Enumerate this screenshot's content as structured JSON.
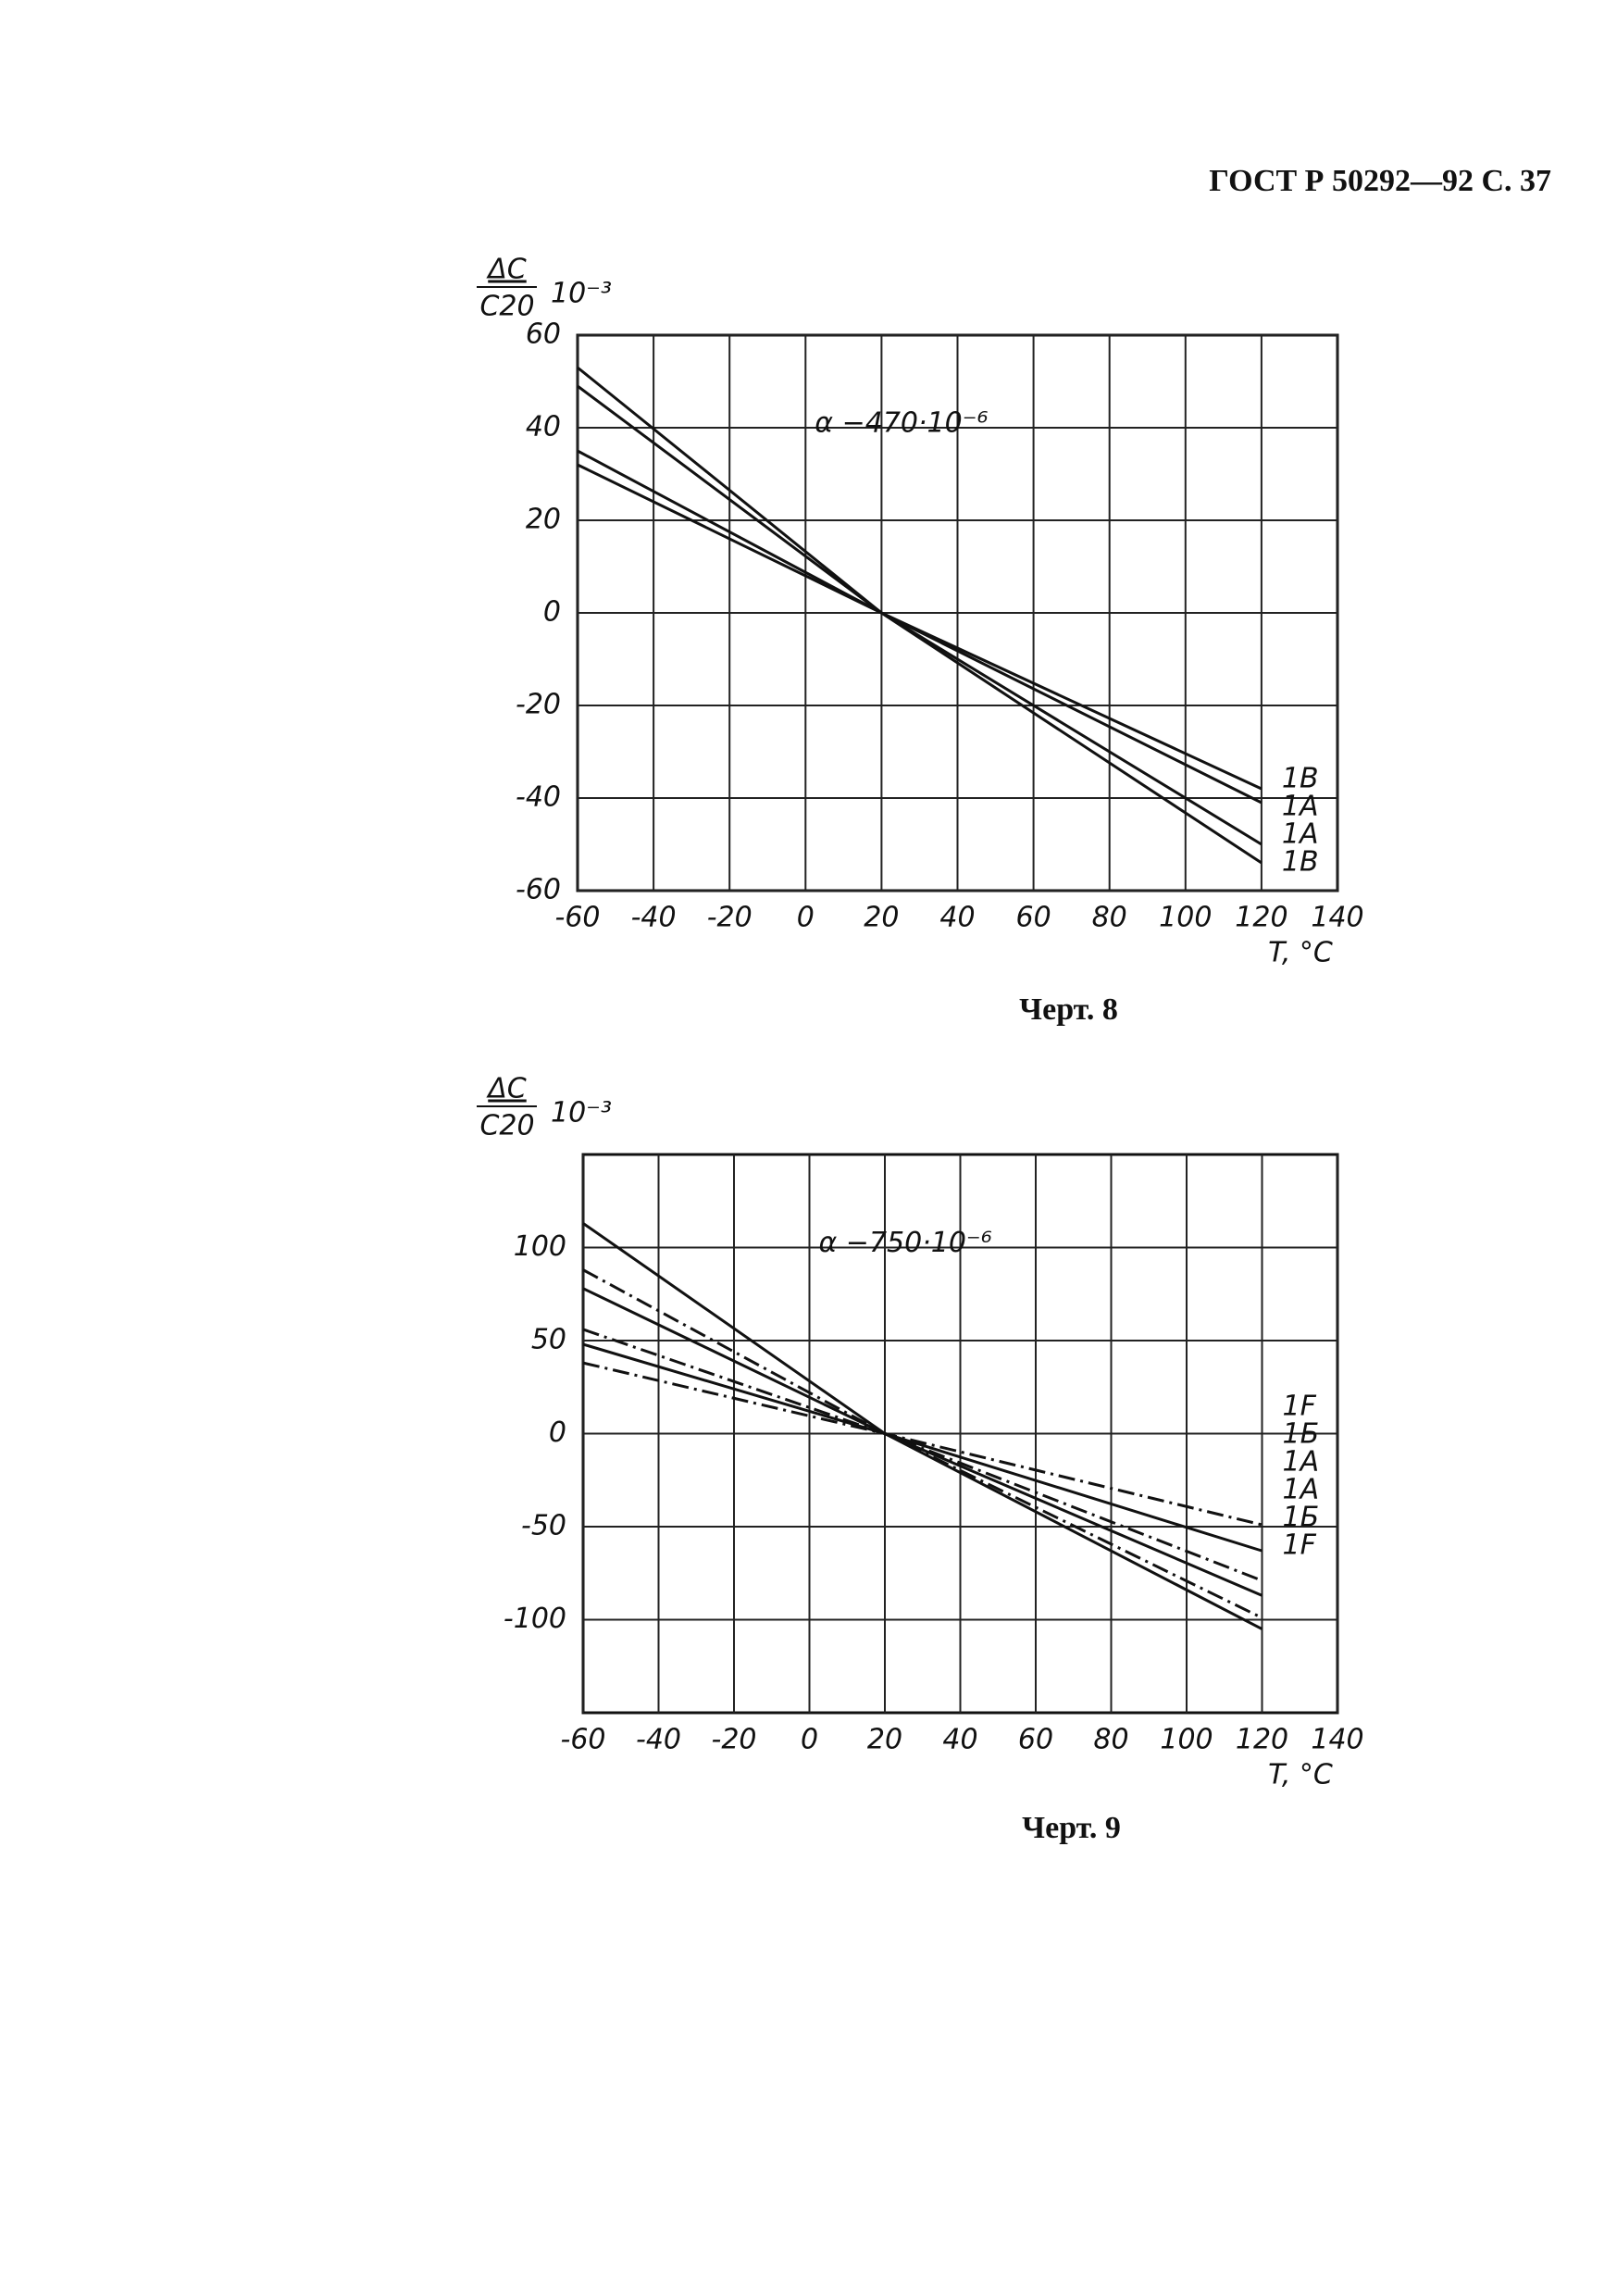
{
  "header": "ГОСТ Р 50292—92 С. 37",
  "chart_data": [
    {
      "type": "line",
      "caption": "Черт. 8",
      "y_label_top": "ΔC",
      "y_label_bottom": "C20",
      "y_unit": "10⁻³",
      "x_label": "T, °C",
      "annotation": "α −470·10⁻⁶",
      "x": [
        -60,
        20,
        120
      ],
      "xlim": [
        -60,
        140
      ],
      "xticks": [
        -60,
        -40,
        -20,
        0,
        20,
        40,
        60,
        80,
        100,
        120,
        140
      ],
      "ylim": [
        -60,
        60
      ],
      "yticks": [
        60,
        40,
        20,
        0,
        -20,
        -40,
        -60
      ],
      "grid": true,
      "series": [
        {
          "name": "1B",
          "color": "#111111",
          "dash": "solid",
          "values": [
            35,
            0,
            -38
          ]
        },
        {
          "name": "1A",
          "color": "#111111",
          "dash": "solid",
          "values": [
            32,
            0,
            -41
          ]
        },
        {
          "name": "1A",
          "color": "#111111",
          "dash": "solid",
          "values": [
            49,
            0,
            -50
          ]
        },
        {
          "name": "1B",
          "color": "#111111",
          "dash": "solid",
          "values": [
            53,
            0,
            -54
          ]
        }
      ]
    },
    {
      "type": "line",
      "caption": "Черт. 9",
      "y_label_top": "ΔC",
      "y_label_bottom": "C20",
      "y_unit": "10⁻³",
      "x_label": "T, °C",
      "annotation": "α −750·10⁻⁶",
      "x": [
        -60,
        20,
        120
      ],
      "xlim": [
        -60,
        140
      ],
      "xticks": [
        -60,
        -40,
        -20,
        0,
        20,
        40,
        60,
        80,
        100,
        120,
        140
      ],
      "ylim": [
        -150,
        150
      ],
      "yticks": [
        100,
        50,
        0,
        -50,
        -100
      ],
      "grid": true,
      "series": [
        {
          "name": "1F",
          "color": "#111111",
          "dash": "dashdot",
          "values": [
            38,
            0,
            -49
          ]
        },
        {
          "name": "1Б",
          "color": "#111111",
          "dash": "solid",
          "values": [
            48,
            0,
            -63
          ]
        },
        {
          "name": "1A",
          "color": "#111111",
          "dash": "dashdot",
          "values": [
            56,
            0,
            -79
          ]
        },
        {
          "name": "1A",
          "color": "#111111",
          "dash": "solid",
          "values": [
            78,
            0,
            -87
          ]
        },
        {
          "name": "1Б",
          "color": "#111111",
          "dash": "dashdot",
          "values": [
            88,
            0,
            -99
          ]
        },
        {
          "name": "1F",
          "color": "#111111",
          "dash": "solid",
          "values": [
            113,
            0,
            -105
          ]
        }
      ]
    }
  ]
}
